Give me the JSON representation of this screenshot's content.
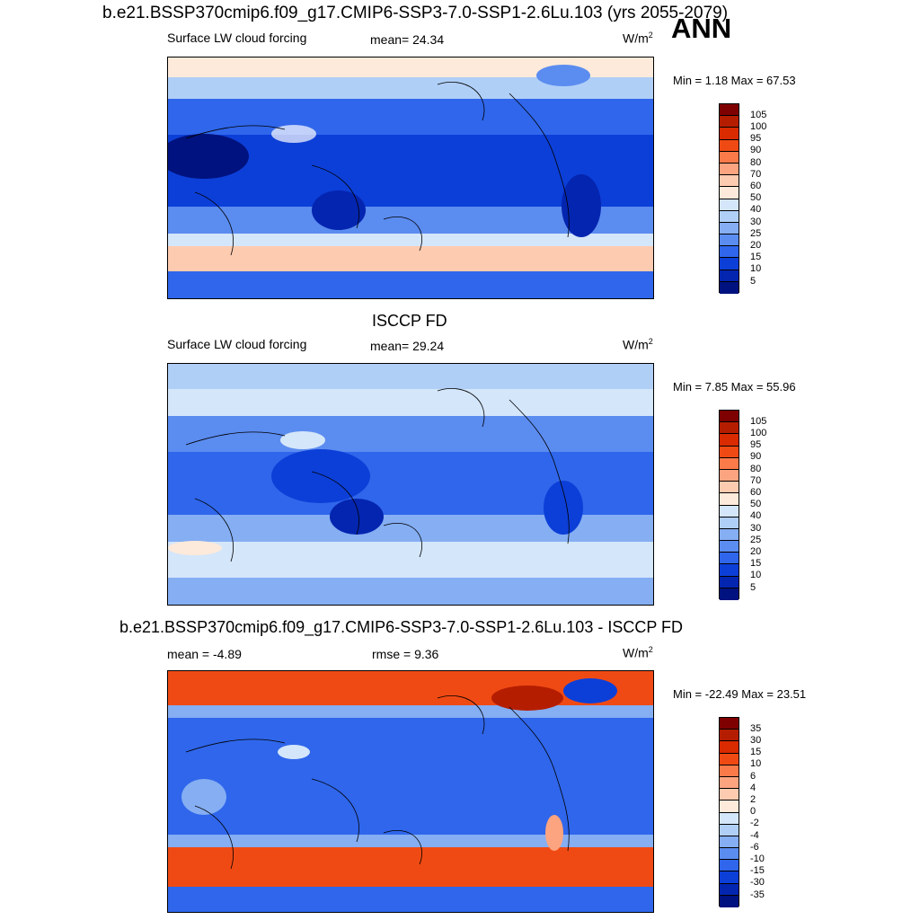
{
  "header": {
    "title": "b.e21.BSSP370cmip6.f09_g17.CMIP6-SSP3-7.0-SSP1-2.6Lu.103 (yrs 2055-2079)",
    "season": "ANN"
  },
  "panels": [
    {
      "title": "",
      "left_label": "Surface LW cloud forcing",
      "center_label": "mean=  24.34",
      "units": "W/m",
      "units_sup": "2",
      "minmax": "Min =   1.18 Max =  67.53",
      "colorbar_labels": [
        "105",
        "100",
        "95",
        "90",
        "80",
        "70",
        "60",
        "50",
        "40",
        "30",
        "25",
        "20",
        "15",
        "10",
        "5"
      ]
    },
    {
      "title": "ISCCP FD",
      "left_label": "Surface LW cloud forcing",
      "center_label": "mean=  29.24",
      "units": "W/m",
      "units_sup": "2",
      "minmax": "Min =   7.85 Max =  55.96",
      "colorbar_labels": [
        "105",
        "100",
        "95",
        "90",
        "80",
        "70",
        "60",
        "50",
        "40",
        "30",
        "25",
        "20",
        "15",
        "10",
        "5"
      ]
    },
    {
      "title": "b.e21.BSSP370cmip6.f09_g17.CMIP6-SSP3-7.0-SSP1-2.6Lu.103 - ISCCP FD",
      "left_label": "mean =  -4.89",
      "center_label": "rmse =   9.36",
      "units": "W/m",
      "units_sup": "2",
      "minmax": "Min = -22.49 Max =  23.51",
      "colorbar_labels": [
        "35",
        "30",
        "15",
        "10",
        "6",
        "4",
        "2",
        "0",
        "-2",
        "-4",
        "-6",
        "-10",
        "-15",
        "-30",
        "-35"
      ]
    }
  ],
  "colors": {
    "colorbar": [
      "#7f0000",
      "#b51d00",
      "#d92a00",
      "#f04a14",
      "#fa7a4a",
      "#fca480",
      "#fdcbb0",
      "#feeada",
      "#d4e6fa",
      "#b0cff7",
      "#85aef3",
      "#5b8cf0",
      "#2f66eb",
      "#0c3fd8",
      "#0425b0",
      "#00127f"
    ]
  }
}
